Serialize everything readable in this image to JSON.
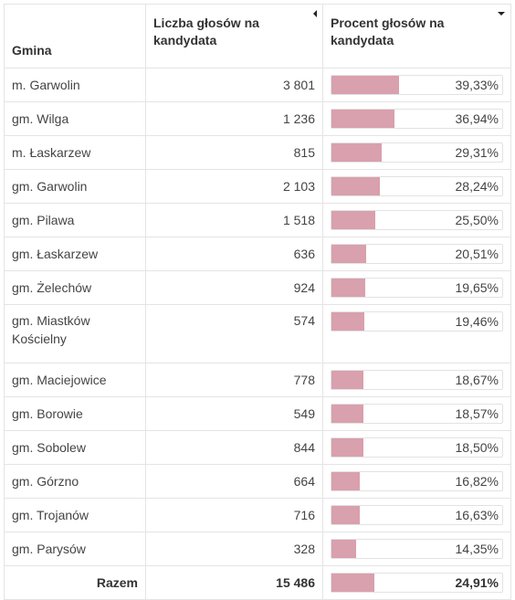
{
  "table": {
    "headers": [
      "Gmina",
      "Liczba głosów na kandydata",
      "Procent głosów na kandydata"
    ],
    "rows": [
      {
        "gmina": "m. Garwolin",
        "glosy": "3 801",
        "procent": {
          "value": 39.33,
          "label": "39,33%"
        }
      },
      {
        "gmina": "gm. Wilga",
        "glosy": "1 236",
        "procent": {
          "value": 36.94,
          "label": "36,94%"
        }
      },
      {
        "gmina": "m. Łaskarzew",
        "glosy": "815",
        "procent": {
          "value": 29.31,
          "label": "29,31%"
        }
      },
      {
        "gmina": "gm. Garwolin",
        "glosy": "2 103",
        "procent": {
          "value": 28.24,
          "label": "28,24%"
        }
      },
      {
        "gmina": "gm. Pilawa",
        "glosy": "1 518",
        "procent": {
          "value": 25.5,
          "label": "25,50%"
        }
      },
      {
        "gmina": "gm. Łaskarzew",
        "glosy": "636",
        "procent": {
          "value": 20.51,
          "label": "20,51%"
        }
      },
      {
        "gmina": "gm. Żelechów",
        "glosy": "924",
        "procent": {
          "value": 19.65,
          "label": "19,65%"
        }
      },
      {
        "gmina": "gm. Miastków Kościelny",
        "glosy": "574",
        "procent": {
          "value": 19.46,
          "label": "19,46%"
        }
      },
      {
        "gmina": "gm. Maciejowice",
        "glosy": "778",
        "procent": {
          "value": 18.67,
          "label": "18,67%"
        }
      },
      {
        "gmina": "gm. Borowie",
        "glosy": "549",
        "procent": {
          "value": 18.57,
          "label": "18,57%"
        }
      },
      {
        "gmina": "gm. Sobolew",
        "glosy": "844",
        "procent": {
          "value": 18.5,
          "label": "18,50%"
        }
      },
      {
        "gmina": "gm. Górzno",
        "glosy": "664",
        "procent": {
          "value": 16.82,
          "label": "16,82%"
        }
      },
      {
        "gmina": "gm. Trojanów",
        "glosy": "716",
        "procent": {
          "value": 16.63,
          "label": "16,63%"
        }
      },
      {
        "gmina": "gm. Parysów",
        "glosy": "328",
        "procent": {
          "value": 14.35,
          "label": "14,35%"
        }
      }
    ],
    "total": {
      "gmina": "Razem",
      "glosy": "15 486",
      "procent": {
        "value": 24.91,
        "label": "24,91%"
      }
    }
  }
}
